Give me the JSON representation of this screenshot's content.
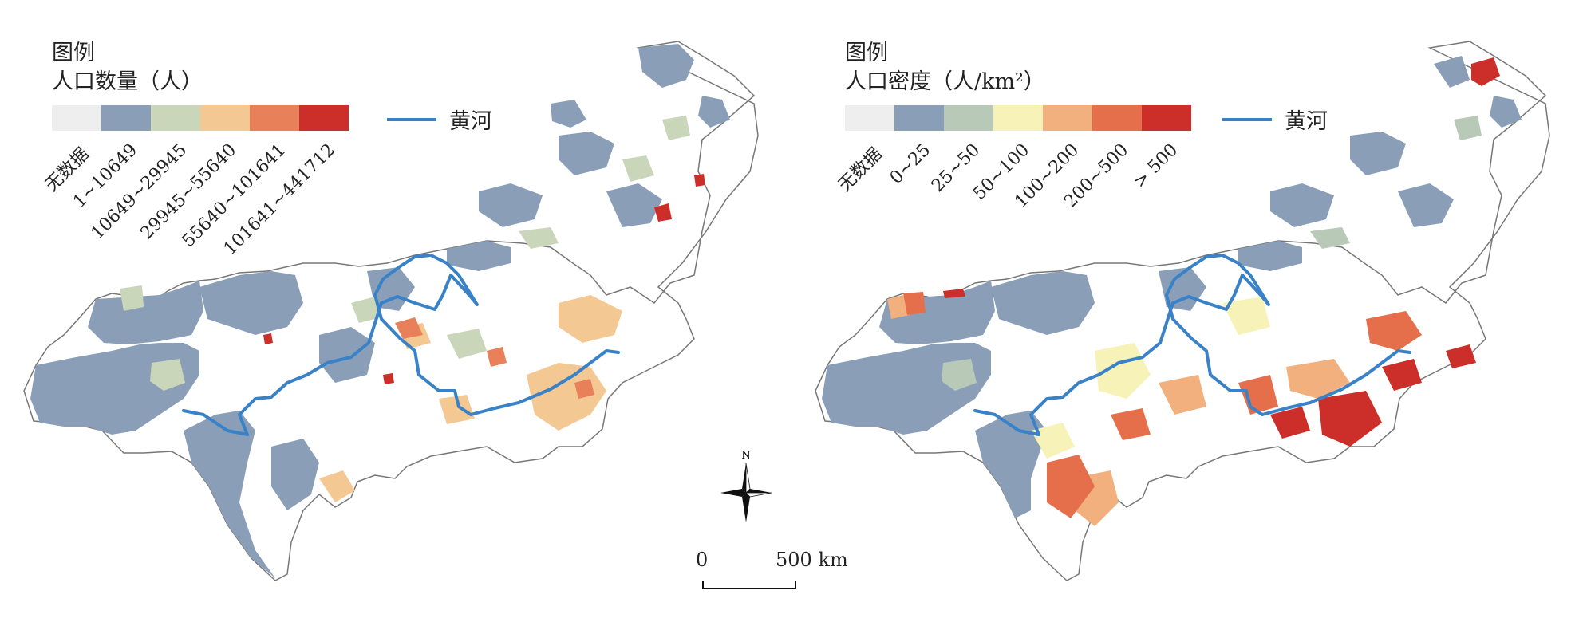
{
  "left_legend": {
    "heading": "图例",
    "title": "人口数量（人）",
    "classes": [
      {
        "label": "无数据",
        "color": "#eeeeee"
      },
      {
        "label": "1~10649",
        "color": "#8a9fb7"
      },
      {
        "label": "10649~29945",
        "color": "#c9d6b9"
      },
      {
        "label": "29945~55640",
        "color": "#f4c893"
      },
      {
        "label": "55640~101641",
        "color": "#e8805a"
      },
      {
        "label": "101641~441712",
        "color": "#cc2f2a"
      }
    ],
    "river_label": "黄河"
  },
  "right_legend": {
    "heading": "图例",
    "title": "人口密度（人/km²）",
    "classes": [
      {
        "label": "无数据",
        "color": "#eeeeee"
      },
      {
        "label": "0~25",
        "color": "#8a9fb7"
      },
      {
        "label": "25~50",
        "color": "#b8c9b7"
      },
      {
        "label": "50~100",
        "color": "#f7f2b7"
      },
      {
        "label": "100~200",
        "color": "#f2b07e"
      },
      {
        "label": "200~500",
        "color": "#e56e4b"
      },
      {
        "label": "> 500",
        "color": "#cc2f2a"
      }
    ],
    "river_label": "黄河"
  },
  "north_label": "N",
  "scale": {
    "start": "0",
    "end": "500 km"
  },
  "river_color": "#3a82c8"
}
